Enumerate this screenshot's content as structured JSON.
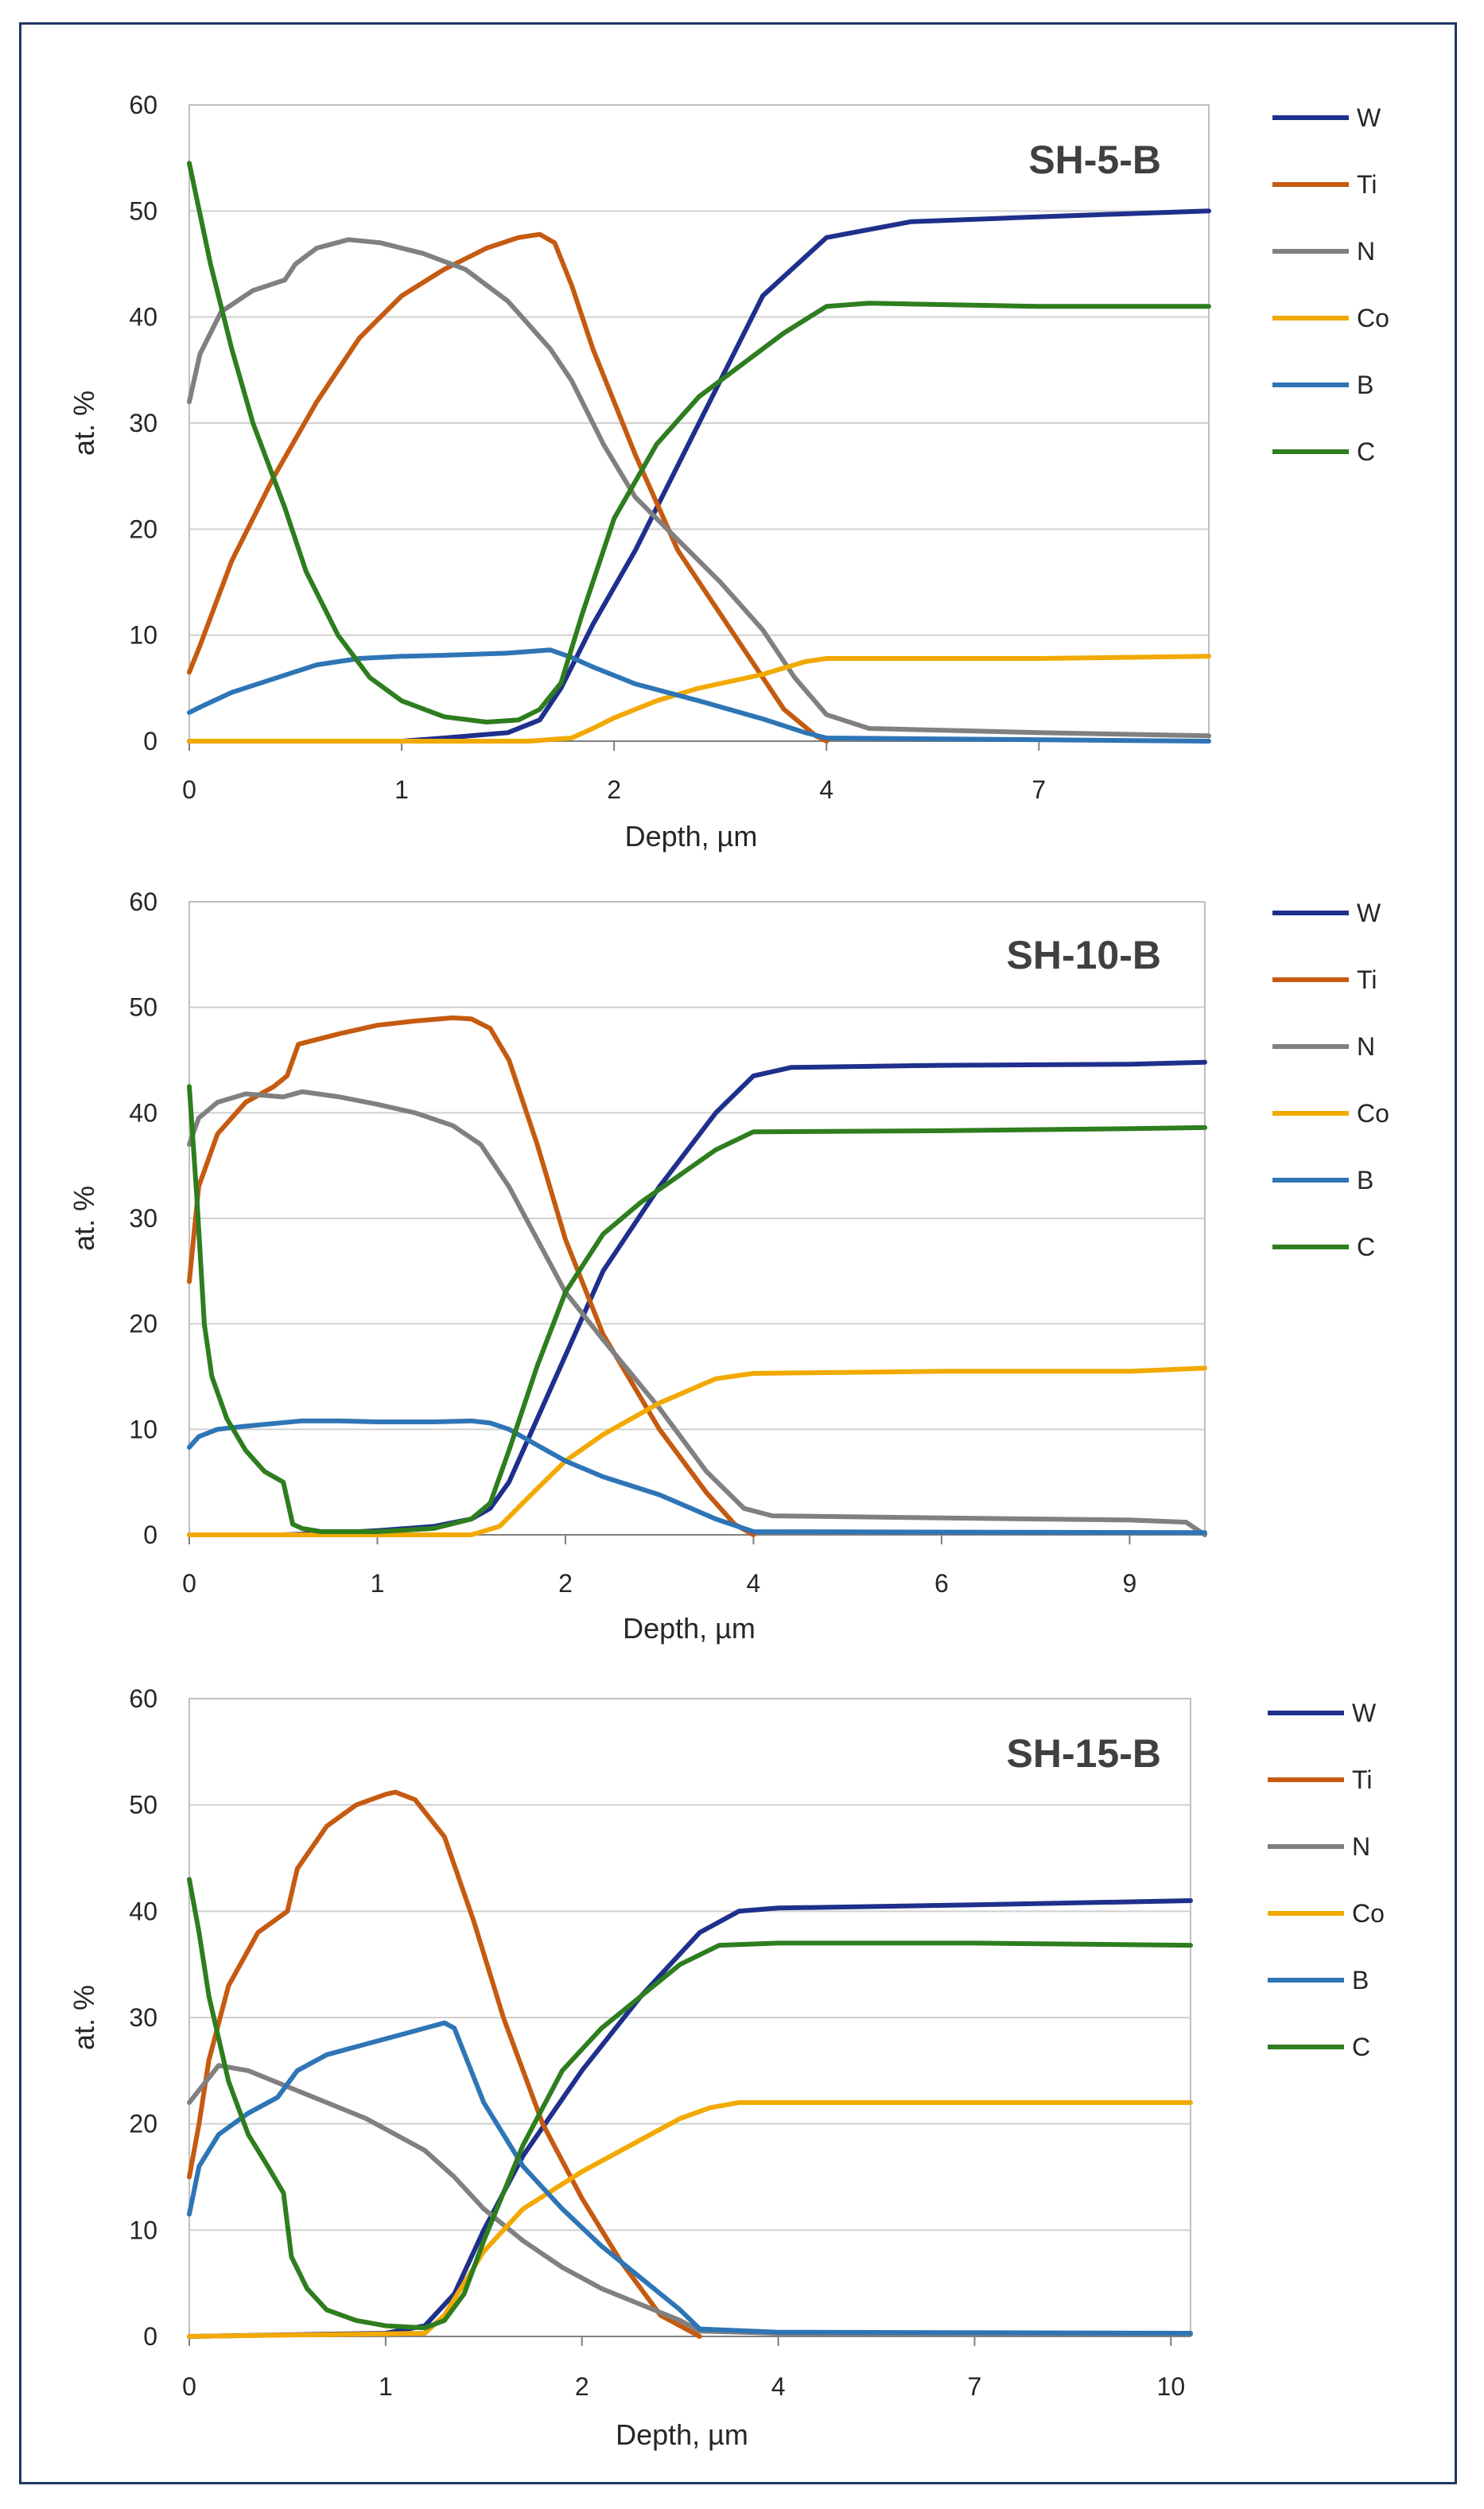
{
  "colors": {
    "W": "#1f2f8c",
    "Ti": "#c55a11",
    "N": "#808080",
    "Co": "#f2a900",
    "B": "#2e75b6",
    "C": "#2e7d1e",
    "grid": "#d0d0d0",
    "frame": "#1f3864"
  },
  "chart_data": [
    {
      "type": "line",
      "title": "SH-5-B",
      "xlabel": "Depth, µm",
      "ylabel": "at. %",
      "ylim": [
        0,
        60
      ],
      "yticks": [
        0,
        10,
        20,
        30,
        40,
        50,
        60
      ],
      "xlim": [
        0,
        4.8
      ],
      "xtick_positions": [
        0,
        1,
        2,
        3,
        4
      ],
      "xtick_labels": [
        "0",
        "1",
        "2",
        "4",
        "7"
      ],
      "grid": true,
      "legend_position": "right",
      "series": [
        {
          "name": "W",
          "x": [
            0,
            0.5,
            1.0,
            1.2,
            1.5,
            1.65,
            1.75,
            1.9,
            2.1,
            2.4,
            2.7,
            3.0,
            3.4,
            3.8,
            4.2,
            4.8
          ],
          "values": [
            0,
            0,
            0,
            0.3,
            0.8,
            2,
            5,
            11,
            18,
            30,
            42,
            47.5,
            49,
            49.3,
            49.6,
            50
          ]
        },
        {
          "name": "Ti",
          "x": [
            0,
            0.05,
            0.2,
            0.4,
            0.6,
            0.8,
            1.0,
            1.2,
            1.4,
            1.55,
            1.65,
            1.72,
            1.8,
            1.9,
            2.1,
            2.3,
            2.6,
            2.8,
            2.95,
            3.0
          ],
          "values": [
            6.5,
            9,
            17,
            25,
            32,
            38,
            42,
            44.5,
            46.5,
            47.5,
            47.8,
            47,
            43,
            37,
            27,
            18,
            9,
            3,
            0.5,
            0
          ]
        },
        {
          "name": "N",
          "x": [
            0,
            0.05,
            0.15,
            0.3,
            0.45,
            0.5,
            0.6,
            0.75,
            0.9,
            1.1,
            1.3,
            1.5,
            1.7,
            1.8,
            1.95,
            2.1,
            2.3,
            2.5,
            2.7,
            2.85,
            3.0,
            3.2,
            4.0,
            4.8
          ],
          "values": [
            32,
            36.5,
            40.5,
            42.5,
            43.5,
            45,
            46.5,
            47.3,
            47,
            46,
            44.5,
            41.5,
            37,
            34,
            28,
            23,
            19,
            15,
            10.5,
            6,
            2.5,
            1.2,
            0.8,
            0.5
          ]
        },
        {
          "name": "Co",
          "x": [
            0,
            1.6,
            1.8,
            1.9,
            2.0,
            2.2,
            2.4,
            2.7,
            2.9,
            3.0,
            4.0,
            4.8
          ],
          "values": [
            0,
            0,
            0.3,
            1.2,
            2.2,
            3.8,
            5.0,
            6.3,
            7.5,
            7.8,
            7.8,
            8
          ]
        },
        {
          "name": "B",
          "x": [
            0,
            0.05,
            0.2,
            0.4,
            0.6,
            0.8,
            1.0,
            1.2,
            1.5,
            1.7,
            1.8,
            1.9,
            2.1,
            2.4,
            2.7,
            2.9,
            3.0,
            4.8
          ],
          "values": [
            2.7,
            3.2,
            4.6,
            5.9,
            7.2,
            7.8,
            8,
            8.1,
            8.3,
            8.6,
            7.9,
            7,
            5.4,
            3.8,
            2.1,
            0.8,
            0.3,
            0
          ]
        },
        {
          "name": "C",
          "x": [
            0,
            0.1,
            0.2,
            0.3,
            0.45,
            0.55,
            0.7,
            0.85,
            1.0,
            1.2,
            1.4,
            1.55,
            1.65,
            1.75,
            1.85,
            2.0,
            2.2,
            2.4,
            2.6,
            2.8,
            3.0,
            3.2,
            4.0,
            4.8
          ],
          "values": [
            54.5,
            45,
            37,
            30,
            22,
            16,
            10,
            6,
            3.8,
            2.3,
            1.8,
            2,
            3,
            5.5,
            12,
            21,
            28,
            32.5,
            35.5,
            38.5,
            41,
            41.3,
            41,
            41
          ]
        }
      ]
    },
    {
      "type": "line",
      "title": "SH-10-B",
      "xlabel": "Depth, µm",
      "ylabel": "at. %",
      "ylim": [
        0,
        60
      ],
      "yticks": [
        0,
        10,
        20,
        30,
        40,
        50,
        60
      ],
      "xlim": [
        0,
        5.4
      ],
      "xtick_positions": [
        0,
        1,
        2,
        3,
        4,
        5
      ],
      "xtick_labels": [
        "0",
        "1",
        "2",
        "4",
        "6",
        "9"
      ],
      "grid": true,
      "legend_position": "right",
      "series": [
        {
          "name": "W",
          "x": [
            0,
            0.5,
            0.8,
            1.0,
            1.3,
            1.5,
            1.6,
            1.7,
            1.8,
            2.0,
            2.2,
            2.5,
            2.8,
            3.0,
            3.2,
            4.0,
            5.0,
            5.4
          ],
          "values": [
            0,
            0,
            0.2,
            0.4,
            0.8,
            1.5,
            2.5,
            5,
            9,
            17,
            25,
            33,
            40,
            43.5,
            44.3,
            44.5,
            44.6,
            44.8
          ]
        },
        {
          "name": "Ti",
          "x": [
            0,
            0.05,
            0.15,
            0.3,
            0.45,
            0.52,
            0.58,
            0.8,
            1.0,
            1.2,
            1.4,
            1.5,
            1.6,
            1.7,
            1.85,
            2.0,
            2.2,
            2.5,
            2.75,
            2.9,
            3.0
          ],
          "values": [
            24,
            33,
            38,
            41,
            42.5,
            43.5,
            46.5,
            47.5,
            48.3,
            48.7,
            49,
            48.9,
            48,
            45,
            37,
            28,
            19,
            10,
            4,
            1,
            0
          ]
        },
        {
          "name": "N",
          "x": [
            0,
            0.05,
            0.15,
            0.3,
            0.5,
            0.6,
            0.8,
            1.0,
            1.2,
            1.4,
            1.55,
            1.7,
            1.85,
            2.0,
            2.2,
            2.5,
            2.75,
            2.95,
            3.1,
            4.0,
            5.0,
            5.3,
            5.4
          ],
          "values": [
            37,
            39.5,
            41,
            41.8,
            41.5,
            42,
            41.5,
            40.8,
            40,
            38.8,
            37,
            33,
            28,
            23,
            18.5,
            12,
            6,
            2.5,
            1.8,
            1.6,
            1.4,
            1.2,
            0
          ]
        },
        {
          "name": "Co",
          "x": [
            0,
            1.5,
            1.65,
            1.8,
            2.0,
            2.2,
            2.5,
            2.8,
            3.0,
            4.0,
            5.0,
            5.4
          ],
          "values": [
            0,
            0,
            0.8,
            3.5,
            7,
            9.5,
            12.5,
            14.8,
            15.3,
            15.5,
            15.5,
            15.8
          ]
        },
        {
          "name": "B",
          "x": [
            0,
            0.05,
            0.15,
            0.3,
            0.6,
            0.8,
            1.0,
            1.3,
            1.5,
            1.6,
            1.7,
            1.85,
            2.0,
            2.2,
            2.5,
            2.8,
            3.0,
            5.4
          ],
          "values": [
            8.3,
            9.3,
            10,
            10.3,
            10.8,
            10.8,
            10.7,
            10.7,
            10.8,
            10.6,
            10,
            8.5,
            7,
            5.5,
            3.8,
            1.5,
            0.3,
            0.2
          ]
        },
        {
          "name": "C",
          "x": [
            0,
            0.04,
            0.08,
            0.12,
            0.2,
            0.3,
            0.4,
            0.5,
            0.55,
            0.6,
            0.7,
            1.0,
            1.3,
            1.5,
            1.6,
            1.7,
            1.85,
            2.0,
            2.2,
            2.4,
            2.6,
            2.8,
            3.0,
            4.0,
            5.0,
            5.4
          ],
          "values": [
            42.5,
            32,
            20,
            15,
            11,
            8,
            6,
            5,
            1,
            0.6,
            0.3,
            0.3,
            0.6,
            1.5,
            3,
            8,
            16,
            23,
            28.5,
            31.5,
            34,
            36.5,
            38.2,
            38.3,
            38.5,
            38.6
          ]
        }
      ]
    },
    {
      "type": "line",
      "title": "SH-15-B",
      "xlabel": "Depth, µm",
      "ylabel": "at. %",
      "ylim": [
        0,
        60
      ],
      "yticks": [
        0,
        10,
        20,
        30,
        40,
        50,
        60
      ],
      "xlim": [
        0,
        5.1
      ],
      "xtick_positions": [
        0,
        1,
        2,
        3,
        4,
        5
      ],
      "xtick_labels": [
        "0",
        "1",
        "2",
        "4",
        "7",
        "10"
      ],
      "grid": true,
      "legend_position": "right",
      "series": [
        {
          "name": "W",
          "x": [
            0,
            1.0,
            1.2,
            1.35,
            1.5,
            1.7,
            2.0,
            2.3,
            2.6,
            2.8,
            3.0,
            4.0,
            5.1
          ],
          "values": [
            0,
            0.3,
            1,
            4,
            10,
            17,
            25,
            32,
            38,
            40,
            40.3,
            40.6,
            41
          ]
        },
        {
          "name": "Ti",
          "x": [
            0,
            0.05,
            0.1,
            0.2,
            0.35,
            0.5,
            0.55,
            0.7,
            0.85,
            1.0,
            1.05,
            1.15,
            1.3,
            1.45,
            1.6,
            1.8,
            2.0,
            2.2,
            2.4,
            2.6
          ],
          "values": [
            15,
            20,
            26,
            33,
            38,
            40,
            44,
            48,
            50,
            51,
            51.2,
            50.5,
            47,
            39,
            30,
            20,
            13,
            7,
            2,
            0
          ]
        },
        {
          "name": "N",
          "x": [
            0,
            0.15,
            0.3,
            0.5,
            0.7,
            0.9,
            1.05,
            1.2,
            1.35,
            1.5,
            1.7,
            1.9,
            2.1,
            2.3,
            2.5,
            2.6,
            3.0,
            5.1
          ],
          "values": [
            22,
            25.5,
            25,
            23.5,
            22,
            20.5,
            19,
            17.5,
            15,
            12,
            9,
            6.5,
            4.5,
            3,
            1.5,
            0.5,
            0.3,
            0.2
          ]
        },
        {
          "name": "Co",
          "x": [
            0,
            1.2,
            1.3,
            1.4,
            1.5,
            1.7,
            2.0,
            2.3,
            2.5,
            2.65,
            2.8,
            3.0,
            4.0,
            5.1
          ],
          "values": [
            0,
            0.3,
            2,
            5,
            8,
            12,
            15.5,
            18.5,
            20.5,
            21.5,
            22,
            22,
            22,
            22
          ]
        },
        {
          "name": "B",
          "x": [
            0,
            0.05,
            0.15,
            0.3,
            0.45,
            0.55,
            0.7,
            0.9,
            1.1,
            1.2,
            1.3,
            1.35,
            1.5,
            1.7,
            1.9,
            2.1,
            2.3,
            2.5,
            2.6,
            3.0,
            5.1
          ],
          "values": [
            11.5,
            16,
            19,
            21,
            22.5,
            25,
            26.5,
            27.5,
            28.5,
            29,
            29.5,
            29,
            22,
            16,
            12,
            8.5,
            5.5,
            2.5,
            0.7,
            0.4,
            0.3
          ]
        },
        {
          "name": "C",
          "x": [
            0,
            0.05,
            0.1,
            0.2,
            0.3,
            0.4,
            0.48,
            0.52,
            0.6,
            0.7,
            0.85,
            1.0,
            1.2,
            1.3,
            1.4,
            1.5,
            1.7,
            1.9,
            2.1,
            2.3,
            2.5,
            2.7,
            3.0,
            4.0,
            5.1
          ],
          "values": [
            43,
            38,
            32,
            24,
            19,
            16,
            13.5,
            7.5,
            4.5,
            2.5,
            1.5,
            1,
            0.8,
            1.5,
            4,
            9,
            18,
            25,
            29,
            32,
            35,
            36.8,
            37,
            37,
            36.8
          ]
        }
      ]
    }
  ]
}
